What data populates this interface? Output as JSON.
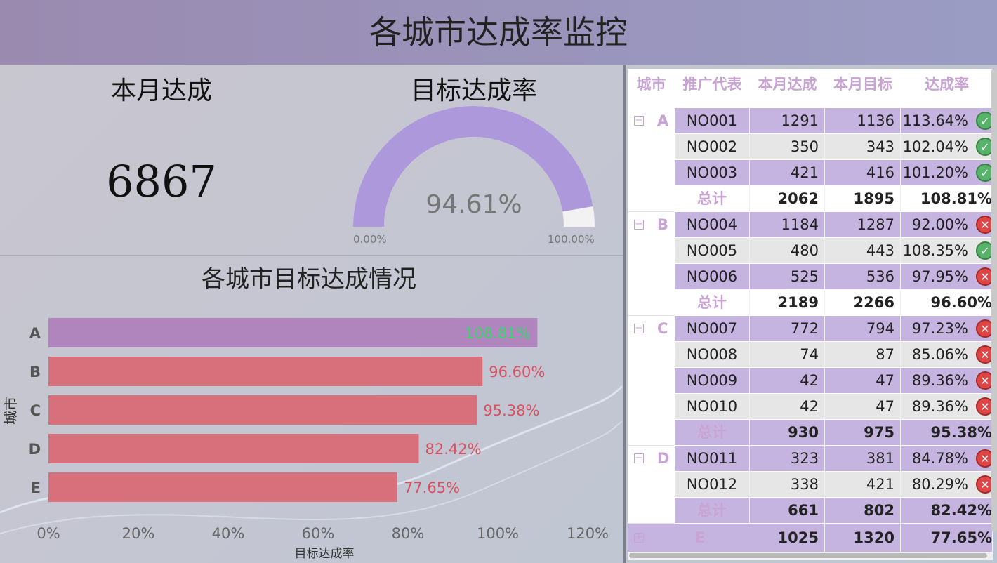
{
  "header": {
    "title": "各城市达成率监控"
  },
  "kpi": {
    "title": "本月达成",
    "value": "6867"
  },
  "gauge": {
    "title": "目标达成率",
    "value_label": "94.61%",
    "value": 0.9461,
    "min_label": "0.00%",
    "max_label": "100.00%",
    "fill_color": "#ae98dc",
    "track_color": "#f2f2f2"
  },
  "bar_section": {
    "title": "各城市目标达成情况"
  },
  "chart_data": {
    "type": "bar",
    "orientation": "horizontal",
    "categories": [
      "A",
      "B",
      "C",
      "D",
      "E"
    ],
    "values": [
      108.81,
      96.6,
      95.38,
      82.42,
      77.65
    ],
    "labels": [
      "108.81%",
      "96.60%",
      "95.38%",
      "82.42%",
      "77.65%"
    ],
    "xlabel": "目标达成率",
    "ylabel": "城市",
    "xlim": [
      0,
      120
    ],
    "xticks": [
      "0%",
      "20%",
      "40%",
      "60%",
      "80%",
      "100%",
      "120%"
    ],
    "colors": {
      "above_target": "#b085bd",
      "below_target": "#d8707c",
      "above_label": "#37d66b",
      "below_label": "#d9505f"
    }
  },
  "table": {
    "columns": [
      "城市",
      "推广代表",
      "本月达成",
      "本月目标",
      "达成率"
    ],
    "groups": [
      {
        "city": "A",
        "expanded": true,
        "rows": [
          {
            "rep": "NO001",
            "actual": "1291",
            "target": "1136",
            "rate": "113.64%",
            "status": "ok"
          },
          {
            "rep": "NO002",
            "actual": "350",
            "target": "343",
            "rate": "102.04%",
            "status": "ok"
          },
          {
            "rep": "NO003",
            "actual": "421",
            "target": "416",
            "rate": "101.20%",
            "status": "ok"
          }
        ],
        "total": {
          "label": "总计",
          "actual": "2062",
          "target": "1895",
          "rate": "108.81%"
        }
      },
      {
        "city": "B",
        "expanded": true,
        "rows": [
          {
            "rep": "NO004",
            "actual": "1184",
            "target": "1287",
            "rate": "92.00%",
            "status": "bad"
          },
          {
            "rep": "NO005",
            "actual": "480",
            "target": "443",
            "rate": "108.35%",
            "status": "ok"
          },
          {
            "rep": "NO006",
            "actual": "525",
            "target": "536",
            "rate": "97.95%",
            "status": "bad"
          }
        ],
        "total": {
          "label": "总计",
          "actual": "2189",
          "target": "2266",
          "rate": "96.60%"
        }
      },
      {
        "city": "C",
        "expanded": true,
        "rows": [
          {
            "rep": "NO007",
            "actual": "772",
            "target": "794",
            "rate": "97.23%",
            "status": "bad"
          },
          {
            "rep": "NO008",
            "actual": "74",
            "target": "87",
            "rate": "85.06%",
            "status": "bad"
          },
          {
            "rep": "NO009",
            "actual": "42",
            "target": "47",
            "rate": "89.36%",
            "status": "bad"
          },
          {
            "rep": "NO010",
            "actual": "42",
            "target": "47",
            "rate": "89.36%",
            "status": "bad"
          }
        ],
        "total": {
          "label": "总计",
          "actual": "930",
          "target": "975",
          "rate": "95.38%"
        }
      },
      {
        "city": "D",
        "expanded": true,
        "rows": [
          {
            "rep": "NO011",
            "actual": "323",
            "target": "381",
            "rate": "84.78%",
            "status": "bad"
          },
          {
            "rep": "NO012",
            "actual": "338",
            "target": "421",
            "rate": "80.29%",
            "status": "bad"
          }
        ],
        "total": {
          "label": "总计",
          "actual": "661",
          "target": "802",
          "rate": "82.42%"
        }
      },
      {
        "city": "E",
        "expanded": false,
        "rows": [],
        "total": {
          "label": "",
          "actual": "1025",
          "target": "1320",
          "rate": "77.65%"
        }
      }
    ]
  }
}
